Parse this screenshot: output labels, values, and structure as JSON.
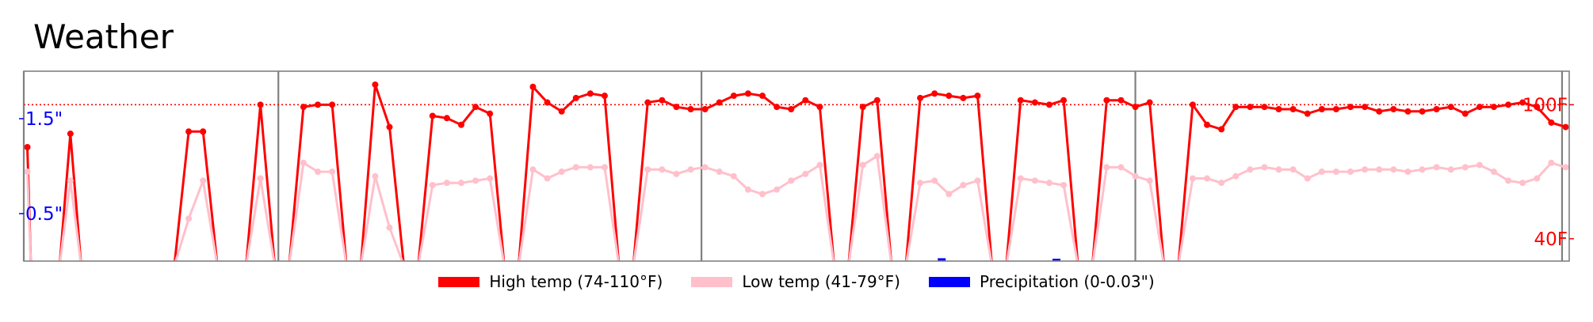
{
  "chart_data": {
    "type": "line",
    "title": "Weather",
    "left_axis": {
      "unit": "in",
      "ylim": [
        0,
        2
      ],
      "ticks": [
        {
          "value": 0.5,
          "label": "0.5\""
        },
        {
          "value": 1.5,
          "label": "1.5\""
        }
      ],
      "color": "#0000ff"
    },
    "right_axis": {
      "unit": "F",
      "ylim": [
        30,
        115
      ],
      "ticks": [
        {
          "value": 40,
          "label": "40F"
        },
        {
          "value": 100,
          "label": "100F"
        }
      ],
      "color": "#ff0000"
    },
    "reference_line": {
      "axis": "right",
      "value": 100,
      "style": "dotted",
      "color": "#ff0000"
    },
    "period_separators_day": [
      1,
      72,
      190,
      311,
      430
    ],
    "x_range_days": [
      1,
      432
    ],
    "series": [
      {
        "name": "High temp (74-110°F)",
        "color": "#ff0000",
        "marker": "dot",
        "segments": [
          [
            [
              2,
              81
            ],
            [
              3,
              28
            ],
            [
              11,
              28
            ],
            [
              14,
              87
            ],
            [
              17,
              28
            ],
            [
              43,
              28
            ],
            [
              47,
              88
            ],
            [
              51,
              88
            ],
            [
              55,
              28
            ],
            [
              63,
              28
            ],
            [
              67,
              100
            ],
            [
              71,
              28
            ],
            [
              75,
              28
            ],
            [
              79,
              99
            ],
            [
              83,
              100
            ],
            [
              87,
              100
            ],
            [
              91,
              28
            ],
            [
              95,
              28
            ],
            [
              99,
              109
            ],
            [
              103,
              90
            ],
            [
              107,
              28
            ],
            [
              111,
              28
            ],
            [
              115,
              95
            ],
            [
              119,
              94
            ],
            [
              123,
              91
            ],
            [
              127,
              99
            ],
            [
              131,
              96
            ],
            [
              135,
              28
            ],
            [
              139,
              28
            ],
            [
              143,
              108
            ],
            [
              147,
              101
            ],
            [
              151,
              97
            ],
            [
              155,
              103
            ],
            [
              159,
              105
            ],
            [
              163,
              104
            ],
            [
              167,
              28
            ],
            [
              171,
              28
            ],
            [
              175,
              101
            ],
            [
              179,
              102
            ],
            [
              183,
              99
            ],
            [
              187,
              98
            ],
            [
              191,
              98
            ],
            [
              195,
              101
            ],
            [
              199,
              104
            ],
            [
              203,
              105
            ],
            [
              207,
              104
            ],
            [
              211,
              99
            ],
            [
              215,
              98
            ],
            [
              219,
              102
            ],
            [
              223,
              99
            ],
            [
              227,
              28
            ],
            [
              231,
              28
            ],
            [
              235,
              99
            ],
            [
              239,
              102
            ],
            [
              243,
              28
            ],
            [
              247,
              28
            ],
            [
              251,
              103
            ],
            [
              255,
              105
            ],
            [
              259,
              104
            ],
            [
              263,
              103
            ],
            [
              267,
              104
            ],
            [
              271,
              28
            ],
            [
              275,
              28
            ],
            [
              279,
              102
            ],
            [
              283,
              101
            ],
            [
              287,
              100
            ],
            [
              291,
              102
            ],
            [
              295,
              28
            ],
            [
              299,
              28
            ],
            [
              303,
              102
            ],
            [
              307,
              102
            ],
            [
              311,
              99
            ],
            [
              315,
              101
            ],
            [
              319,
              28
            ],
            [
              323,
              28
            ],
            [
              327,
              100
            ],
            [
              331,
              91
            ],
            [
              335,
              89
            ],
            [
              339,
              99
            ],
            [
              343,
              99
            ],
            [
              347,
              99
            ],
            [
              351,
              98
            ],
            [
              355,
              98
            ],
            [
              359,
              96
            ],
            [
              363,
              98
            ],
            [
              367,
              98
            ],
            [
              371,
              99
            ],
            [
              375,
              99
            ],
            [
              379,
              97
            ],
            [
              383,
              98
            ],
            [
              387,
              97
            ],
            [
              391,
              97
            ],
            [
              395,
              98
            ],
            [
              399,
              99
            ],
            [
              403,
              96
            ],
            [
              407,
              99
            ],
            [
              411,
              99
            ],
            [
              415,
              100
            ],
            [
              419,
              101
            ],
            [
              423,
              99
            ],
            [
              427,
              92
            ],
            [
              431,
              90
            ]
          ]
        ]
      },
      {
        "name": "Low temp (41-79°F)",
        "color": "#ffc0cb",
        "marker": "dot",
        "segments": [
          [
            [
              2,
              70
            ],
            [
              3,
              28
            ],
            [
              11,
              28
            ],
            [
              14,
              66
            ],
            [
              17,
              28
            ],
            [
              43,
              28
            ],
            [
              47,
              49
            ],
            [
              51,
              66
            ],
            [
              55,
              28
            ],
            [
              63,
              28
            ],
            [
              67,
              67
            ],
            [
              71,
              28
            ],
            [
              75,
              28
            ],
            [
              79,
              74
            ],
            [
              83,
              70
            ],
            [
              87,
              70
            ],
            [
              91,
              28
            ],
            [
              95,
              28
            ],
            [
              99,
              68
            ],
            [
              103,
              45
            ],
            [
              107,
              28
            ],
            [
              111,
              28
            ],
            [
              115,
              64
            ],
            [
              119,
              65
            ],
            [
              123,
              65
            ],
            [
              127,
              66
            ],
            [
              131,
              67
            ],
            [
              135,
              28
            ],
            [
              139,
              28
            ],
            [
              143,
              71
            ],
            [
              147,
              67
            ],
            [
              151,
              70
            ],
            [
              155,
              72
            ],
            [
              159,
              72
            ],
            [
              163,
              72
            ],
            [
              167,
              28
            ],
            [
              171,
              28
            ],
            [
              175,
              71
            ],
            [
              179,
              71
            ],
            [
              183,
              69
            ],
            [
              187,
              71
            ],
            [
              191,
              72
            ],
            [
              195,
              70
            ],
            [
              199,
              68
            ],
            [
              203,
              62
            ],
            [
              207,
              60
            ],
            [
              211,
              62
            ],
            [
              215,
              66
            ],
            [
              219,
              69
            ],
            [
              223,
              73
            ],
            [
              227,
              28
            ],
            [
              231,
              28
            ],
            [
              235,
              73
            ],
            [
              239,
              77
            ],
            [
              243,
              28
            ],
            [
              247,
              28
            ],
            [
              251,
              65
            ],
            [
              255,
              66
            ],
            [
              259,
              60
            ],
            [
              263,
              64
            ],
            [
              267,
              66
            ],
            [
              271,
              28
            ],
            [
              275,
              28
            ],
            [
              279,
              67
            ],
            [
              283,
              66
            ],
            [
              287,
              65
            ],
            [
              291,
              64
            ],
            [
              295,
              28
            ],
            [
              299,
              28
            ],
            [
              303,
              72
            ],
            [
              307,
              72
            ],
            [
              311,
              68
            ],
            [
              315,
              66
            ],
            [
              319,
              28
            ],
            [
              323,
              28
            ],
            [
              327,
              67
            ],
            [
              331,
              67
            ],
            [
              335,
              65
            ],
            [
              339,
              68
            ],
            [
              343,
              71
            ],
            [
              347,
              72
            ],
            [
              351,
              71
            ],
            [
              355,
              71
            ],
            [
              359,
              67
            ],
            [
              363,
              70
            ],
            [
              367,
              70
            ],
            [
              371,
              70
            ],
            [
              375,
              71
            ],
            [
              379,
              71
            ],
            [
              383,
              71
            ],
            [
              387,
              70
            ],
            [
              391,
              71
            ],
            [
              395,
              72
            ],
            [
              399,
              71
            ],
            [
              403,
              72
            ],
            [
              407,
              73
            ],
            [
              411,
              70
            ],
            [
              415,
              66
            ],
            [
              419,
              65
            ],
            [
              423,
              67
            ],
            [
              427,
              74
            ],
            [
              431,
              72
            ]
          ]
        ]
      },
      {
        "name": "Precipitation (0-0.03\")",
        "color": "#0000ff",
        "axis": "left",
        "type": "bar",
        "points": [
          [
            257,
            0.03
          ],
          [
            289,
            0.01
          ]
        ]
      }
    ],
    "legend": [
      "High temp (74-110°F)",
      "Low temp (41-79°F)",
      "Precipitation (0-0.03\")"
    ],
    "legend_placement": "bottom-center",
    "grid": false
  }
}
